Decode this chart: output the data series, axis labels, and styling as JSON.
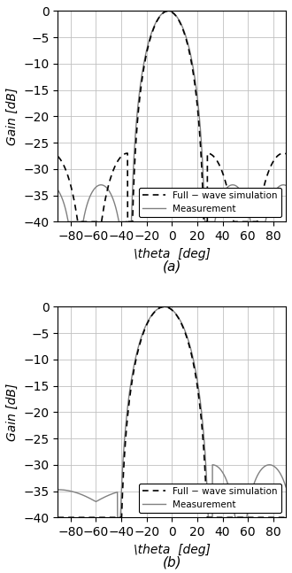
{
  "title_a": "(a)",
  "title_b": "(b)",
  "xlabel": "\\theta  [deg]",
  "ylabel": "Gain [dB]",
  "xlim": [
    -90,
    90
  ],
  "ylim": [
    -40,
    0
  ],
  "xticks": [
    -80,
    -60,
    -40,
    -20,
    0,
    20,
    40,
    60,
    80
  ],
  "yticks": [
    0,
    -5,
    -10,
    -15,
    -20,
    -25,
    -30,
    -35,
    -40
  ],
  "legend_sim": "Full − wave simulation",
  "legend_meas": "Measurement",
  "grid_color": "#c0c0c0",
  "sim_color": "#000000",
  "meas_color": "#808080",
  "background": "#ffffff",
  "figsize": [
    3.3,
    6.47
  ],
  "dpi": 100
}
